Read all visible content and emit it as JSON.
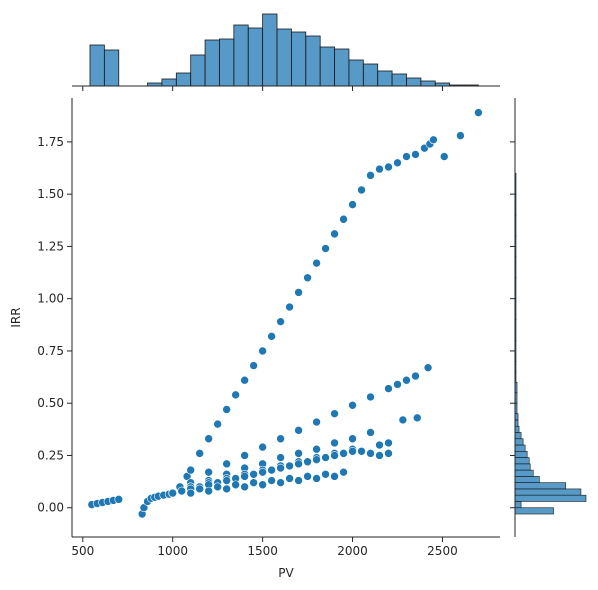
{
  "chart_data": {
    "type": "scatter",
    "title": "",
    "xlabel": "PV",
    "ylabel": "IRR",
    "xlim": [
      440,
      2820
    ],
    "ylim": [
      -0.14,
      1.96
    ],
    "x_ticks": [
      500,
      1000,
      1500,
      2000,
      2500
    ],
    "y_ticks": [
      0.0,
      0.25,
      0.5,
      0.75,
      1.0,
      1.25,
      1.5,
      1.75
    ],
    "x_tick_labels": [
      "500",
      "1000",
      "1500",
      "2000",
      "2500"
    ],
    "y_tick_labels": [
      "0.00",
      "0.25",
      "0.50",
      "0.75",
      "1.00",
      "1.25",
      "1.50",
      "1.75"
    ],
    "grid": false,
    "legend": "none",
    "color": "#1f77b4",
    "series": [
      {
        "values_description_free": true,
        "x": [
          550,
          580,
          610,
          640,
          670,
          700,
          830,
          840,
          860,
          880,
          900,
          920,
          950,
          980,
          1000,
          1040,
          1080,
          1100,
          1150,
          1200,
          1250,
          1300,
          1350,
          1400,
          1450,
          1500,
          1550,
          1600,
          1650,
          1700,
          1750,
          1800,
          1850,
          1900,
          1950,
          2000,
          2050,
          2100,
          2150,
          2200,
          2250,
          2300,
          2350,
          2400,
          2430,
          2450,
          2510,
          2600,
          2700,
          1100,
          1200,
          1300,
          1400,
          1500,
          1600,
          1700,
          1800,
          1900,
          2000,
          2100,
          2200,
          2250,
          2300,
          2350,
          2420,
          1100,
          1200,
          1300,
          1400,
          1500,
          1600,
          1700,
          1800,
          1900,
          2000,
          2100,
          2150,
          2200,
          2280,
          2360,
          1000,
          1100,
          1200,
          1300,
          1400,
          1500,
          1600,
          1700,
          1800,
          1900,
          2000,
          2050,
          2100,
          2150,
          2200,
          1000,
          1050,
          1100,
          1150,
          1200,
          1250,
          1300,
          1350,
          1400,
          1450,
          1500,
          1550,
          1600,
          1650,
          1700,
          1750,
          1800,
          1850,
          1900,
          1950,
          2000,
          1050,
          1150,
          1250,
          1350,
          1450,
          1550,
          1650,
          1750,
          1850,
          1950,
          1100,
          1200,
          1300,
          1400,
          1500,
          1600,
          1700,
          1800,
          1900
        ],
        "y": [
          0.015,
          0.02,
          0.025,
          0.03,
          0.035,
          0.04,
          -0.03,
          0.0,
          0.03,
          0.045,
          0.05,
          0.055,
          0.06,
          0.065,
          0.07,
          0.1,
          0.15,
          0.18,
          0.26,
          0.33,
          0.4,
          0.47,
          0.54,
          0.61,
          0.68,
          0.75,
          0.82,
          0.89,
          0.96,
          1.03,
          1.1,
          1.17,
          1.24,
          1.31,
          1.38,
          1.45,
          1.52,
          1.59,
          1.62,
          1.63,
          1.65,
          1.68,
          1.69,
          1.72,
          1.74,
          1.76,
          1.68,
          1.78,
          1.89,
          0.12,
          0.17,
          0.21,
          0.25,
          0.29,
          0.33,
          0.37,
          0.41,
          0.45,
          0.49,
          0.53,
          0.57,
          0.59,
          0.61,
          0.63,
          0.67,
          0.1,
          0.13,
          0.16,
          0.19,
          0.21,
          0.24,
          0.26,
          0.28,
          0.31,
          0.33,
          0.36,
          0.3,
          0.31,
          0.42,
          0.43,
          0.07,
          0.1,
          0.12,
          0.14,
          0.16,
          0.18,
          0.2,
          0.22,
          0.24,
          0.26,
          0.28,
          0.27,
          0.26,
          0.25,
          0.26,
          0.07,
          0.08,
          0.09,
          0.1,
          0.11,
          0.12,
          0.13,
          0.14,
          0.15,
          0.16,
          0.17,
          0.18,
          0.19,
          0.2,
          0.21,
          0.22,
          0.23,
          0.24,
          0.25,
          0.26,
          0.27,
          0.08,
          0.09,
          0.1,
          0.11,
          0.12,
          0.13,
          0.14,
          0.15,
          0.16,
          0.17,
          0.07,
          0.08,
          0.09,
          0.1,
          0.11,
          0.12,
          0.13,
          0.14,
          0.15
        ]
      }
    ],
    "x_hist": {
      "bins": [
        540,
        620,
        700,
        780,
        860,
        940,
        1020,
        1100,
        1180,
        1260,
        1340,
        1420,
        1500,
        1580,
        1660,
        1740,
        1820,
        1900,
        1980,
        2060,
        2140,
        2220,
        2300,
        2380,
        2460,
        2540,
        2620,
        2700
      ],
      "counts": [
        41,
        36,
        0,
        0,
        3,
        7,
        13,
        31,
        46,
        47,
        61,
        58,
        72,
        57,
        54,
        50,
        39,
        37,
        26,
        22,
        15,
        12,
        8,
        5,
        3,
        1,
        1
      ]
    },
    "y_hist": {
      "bins": [
        -0.03,
        0.0,
        0.03,
        0.06,
        0.09,
        0.12,
        0.15,
        0.18,
        0.21,
        0.24,
        0.27,
        0.3,
        0.33,
        0.36,
        0.39,
        0.42,
        0.45,
        0.5,
        0.55,
        0.6,
        0.65,
        0.7,
        0.8,
        0.9,
        1.0,
        1.1,
        1.2,
        1.3,
        1.4,
        1.5,
        1.6,
        1.7,
        1.8,
        1.9
      ],
      "counts": [
        38,
        6,
        70,
        65,
        50,
        24,
        18,
        15,
        14,
        12,
        10,
        8,
        6,
        4,
        3,
        3,
        2,
        2,
        2,
        1,
        1,
        1,
        1,
        1,
        1,
        1,
        1,
        1,
        1,
        1,
        0,
        0,
        0
      ]
    }
  }
}
